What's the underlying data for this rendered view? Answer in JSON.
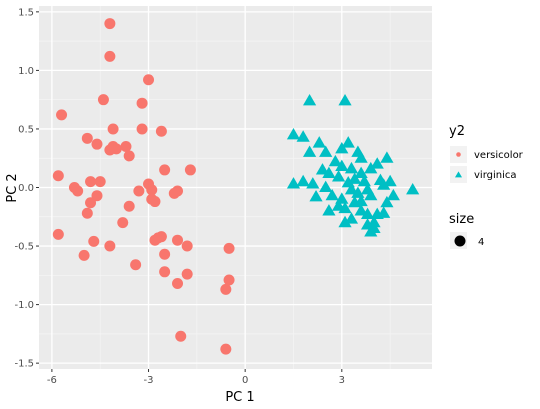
{
  "chart_data": {
    "type": "scatter",
    "xlabel": "PC 1",
    "ylabel": "PC 2",
    "xlim": [
      -6.4,
      5.8
    ],
    "ylim": [
      -1.55,
      1.55
    ],
    "x_ticks": [
      -6,
      -3,
      0,
      3
    ],
    "y_ticks": [
      -1.5,
      -1.0,
      -0.5,
      0.0,
      0.5,
      1.0,
      1.5
    ],
    "x_tick_labels": [
      "-6",
      "-3",
      "0",
      "3"
    ],
    "y_tick_labels": [
      "-1.5",
      "-1.0",
      "-0.5",
      "0.0",
      "0.5",
      "1.0",
      "1.5"
    ],
    "grid": true,
    "legend_placement": "right",
    "legend_title": "y2",
    "size_legend_title": "size",
    "size_legend_value": "4",
    "series": [
      {
        "name": "versicolor",
        "color": "#F8766D",
        "shape": "circle",
        "points": [
          [
            -4.2,
            1.4
          ],
          [
            -4.2,
            1.12
          ],
          [
            -3.0,
            0.92
          ],
          [
            -4.4,
            0.75
          ],
          [
            -3.2,
            0.72
          ],
          [
            -5.7,
            0.62
          ],
          [
            -4.1,
            0.5
          ],
          [
            -3.2,
            0.5
          ],
          [
            -2.6,
            0.48
          ],
          [
            -4.9,
            0.42
          ],
          [
            -4.6,
            0.37
          ],
          [
            -4.1,
            0.35
          ],
          [
            -4.0,
            0.33
          ],
          [
            -4.2,
            0.32
          ],
          [
            -3.7,
            0.35
          ],
          [
            -3.6,
            0.27
          ],
          [
            -2.5,
            0.15
          ],
          [
            -1.7,
            0.15
          ],
          [
            -5.8,
            0.1
          ],
          [
            -4.5,
            0.05
          ],
          [
            -4.8,
            0.05
          ],
          [
            -3.0,
            0.03
          ],
          [
            -2.9,
            -0.02
          ],
          [
            -3.3,
            -0.03
          ],
          [
            -2.1,
            -0.03
          ],
          [
            -5.3,
            0.0
          ],
          [
            -5.2,
            -0.03
          ],
          [
            -2.2,
            -0.05
          ],
          [
            -4.6,
            -0.07
          ],
          [
            -2.9,
            -0.1
          ],
          [
            -2.8,
            -0.12
          ],
          [
            -4.8,
            -0.13
          ],
          [
            -3.6,
            -0.16
          ],
          [
            -4.9,
            -0.22
          ],
          [
            -3.8,
            -0.3
          ],
          [
            -5.8,
            -0.4
          ],
          [
            -2.6,
            -0.42
          ],
          [
            -2.7,
            -0.43
          ],
          [
            -2.8,
            -0.45
          ],
          [
            -2.1,
            -0.45
          ],
          [
            -4.7,
            -0.46
          ],
          [
            -1.8,
            -0.5
          ],
          [
            -4.2,
            -0.5
          ],
          [
            -0.5,
            -0.52
          ],
          [
            -2.5,
            -0.57
          ],
          [
            -5.0,
            -0.58
          ],
          [
            -3.4,
            -0.66
          ],
          [
            -2.5,
            -0.72
          ],
          [
            -1.8,
            -0.74
          ],
          [
            -0.5,
            -0.79
          ],
          [
            -2.1,
            -0.82
          ],
          [
            -0.6,
            -0.87
          ],
          [
            -2.0,
            -1.27
          ],
          [
            -0.6,
            -1.38
          ]
        ]
      },
      {
        "name": "virginica",
        "color": "#00BFC4",
        "shape": "triangle",
        "points": [
          [
            2.0,
            0.74
          ],
          [
            3.1,
            0.74
          ],
          [
            1.5,
            0.45
          ],
          [
            1.8,
            0.43
          ],
          [
            2.3,
            0.38
          ],
          [
            3.0,
            0.33
          ],
          [
            3.2,
            0.38
          ],
          [
            2.5,
            0.3
          ],
          [
            3.5,
            0.3
          ],
          [
            2.0,
            0.3
          ],
          [
            3.6,
            0.25
          ],
          [
            2.8,
            0.22
          ],
          [
            4.4,
            0.25
          ],
          [
            3.0,
            0.18
          ],
          [
            3.3,
            0.16
          ],
          [
            2.4,
            0.15
          ],
          [
            4.1,
            0.2
          ],
          [
            3.9,
            0.16
          ],
          [
            2.6,
            0.12
          ],
          [
            3.6,
            0.12
          ],
          [
            2.9,
            0.09
          ],
          [
            3.4,
            0.07
          ],
          [
            4.2,
            0.06
          ],
          [
            3.7,
            0.05
          ],
          [
            1.8,
            0.05
          ],
          [
            2.1,
            0.03
          ],
          [
            4.5,
            0.05
          ],
          [
            3.2,
            0.04
          ],
          [
            4.3,
            0.02
          ],
          [
            2.5,
            0.0
          ],
          [
            1.5,
            0.03
          ],
          [
            3.8,
            -0.02
          ],
          [
            3.3,
            -0.02
          ],
          [
            5.2,
            -0.02
          ],
          [
            3.5,
            -0.05
          ],
          [
            2.7,
            -0.07
          ],
          [
            3.9,
            -0.07
          ],
          [
            2.2,
            -0.08
          ],
          [
            4.6,
            -0.07
          ],
          [
            3.0,
            -0.1
          ],
          [
            3.6,
            -0.12
          ],
          [
            3.4,
            -0.13
          ],
          [
            4.4,
            -0.13
          ],
          [
            2.9,
            -0.16
          ],
          [
            3.1,
            -0.18
          ],
          [
            2.6,
            -0.2
          ],
          [
            3.6,
            -0.2
          ],
          [
            4.3,
            -0.22
          ],
          [
            3.8,
            -0.23
          ],
          [
            4.1,
            -0.23
          ],
          [
            3.3,
            -0.27
          ],
          [
            4.0,
            -0.3
          ],
          [
            3.1,
            -0.3
          ],
          [
            3.8,
            -0.32
          ],
          [
            4.0,
            -0.35
          ],
          [
            3.9,
            -0.38
          ]
        ]
      }
    ]
  }
}
